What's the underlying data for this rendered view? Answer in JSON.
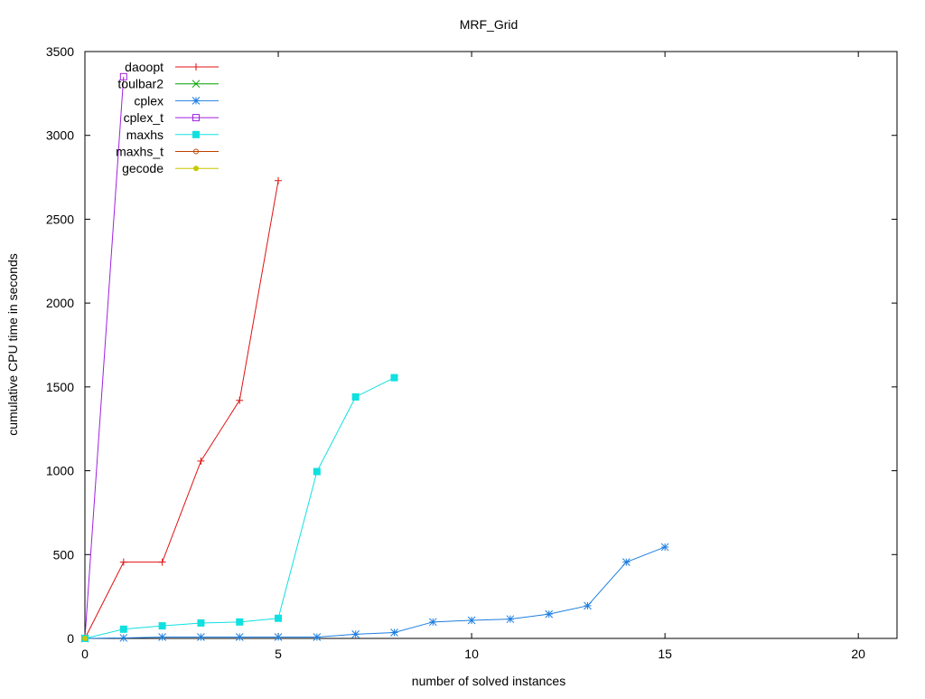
{
  "chart_data": {
    "type": "line",
    "title": "MRF_Grid",
    "xlabel": "number of solved instances",
    "ylabel": "cumulative CPU time in seconds",
    "xlim": [
      0,
      21
    ],
    "ylim": [
      0,
      3500
    ],
    "xticks": [
      0,
      5,
      10,
      15,
      20
    ],
    "yticks": [
      0,
      500,
      1000,
      1500,
      2000,
      2500,
      3000,
      3500
    ],
    "grid": false,
    "legend_position": "top-left",
    "series": [
      {
        "name": "daoopt",
        "color": "#e01010",
        "marker": "plus",
        "x": [
          0,
          1,
          2,
          3,
          4,
          5
        ],
        "y": [
          0,
          455,
          455,
          1058,
          1420,
          2730
        ]
      },
      {
        "name": "toulbar2",
        "color": "#00a000",
        "marker": "cross",
        "x": [
          0
        ],
        "y": [
          0
        ]
      },
      {
        "name": "cplex",
        "color": "#1e7fe0",
        "marker": "star",
        "x": [
          0,
          1,
          2,
          3,
          4,
          5,
          6,
          7,
          8,
          9,
          10,
          11,
          12,
          13,
          14,
          15
        ],
        "y": [
          0,
          3,
          8,
          8,
          8,
          8,
          8,
          25,
          35,
          98,
          108,
          115,
          145,
          195,
          455,
          545
        ]
      },
      {
        "name": "cplex_t",
        "color": "#a020e0",
        "marker": "box",
        "x": [
          0,
          1
        ],
        "y": [
          0,
          3350
        ]
      },
      {
        "name": "maxhs",
        "color": "#10e0e0",
        "marker": "filled-box",
        "x": [
          0,
          1,
          2,
          3,
          4,
          5,
          6,
          7,
          8
        ],
        "y": [
          0,
          55,
          75,
          92,
          98,
          120,
          995,
          1440,
          1555
        ]
      },
      {
        "name": "maxhs_t",
        "color": "#c04000",
        "marker": "circle",
        "x": [
          0
        ],
        "y": [
          0
        ]
      },
      {
        "name": "gecode",
        "color": "#c8c800",
        "marker": "filled-circle",
        "x": [
          0
        ],
        "y": [
          0
        ]
      }
    ]
  }
}
